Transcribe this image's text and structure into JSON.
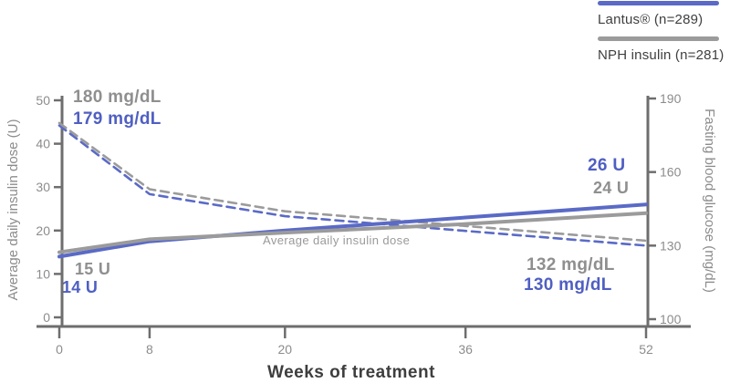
{
  "colors": {
    "brand_blue": "#5a6ac6",
    "blue_text": "#4f5fc2",
    "comparator_gray": "#9b9b9b",
    "axis_gray": "#6e6e6e",
    "tick_text_gray": "#8c8c8c",
    "legend_text": "#3f3f3f"
  },
  "legend": {
    "items": [
      {
        "label": "Lantus® (n=289)",
        "color": "#5a6ac6",
        "style": "solid"
      },
      {
        "label": "NPH insulin (n=281)",
        "color": "#9b9b9b",
        "style": "solid"
      }
    ]
  },
  "annotations": {
    "nph_fbg_start": {
      "text": "180 mg/dL"
    },
    "lantus_fbg_start": {
      "text": "179 mg/dL"
    },
    "nph_dose_start": {
      "text": "15 U"
    },
    "lantus_dose_start": {
      "text": "14 U"
    },
    "lantus_dose_end": {
      "text": "26 U"
    },
    "nph_dose_end": {
      "text": "24 U"
    },
    "nph_fbg_end": {
      "text": "132 mg/dL"
    },
    "lantus_fbg_end": {
      "text": "130 mg/dL"
    },
    "dose_note": {
      "text": "Average daily insulin dose"
    }
  },
  "chart_data": {
    "type": "line",
    "xlabel": "Weeks of treatment",
    "x_ticks": [
      0,
      8,
      20,
      36,
      52
    ],
    "x_range": [
      0,
      52
    ],
    "axes": {
      "left": {
        "title": "Average daily insulin dose (U)",
        "ticks": [
          0,
          10,
          20,
          30,
          40,
          50
        ],
        "range": [
          0,
          50
        ]
      },
      "right": {
        "title": "Fasting blood glucose (mg/dL)",
        "ticks": [
          100,
          130,
          160,
          190
        ],
        "range": [
          100,
          190
        ]
      }
    },
    "grid": false,
    "legend_position": "top-right",
    "series": [
      {
        "name": "Lantus FBG (mg/dL)",
        "axis": "right",
        "line": "dashed",
        "color": "#5a6ac6",
        "x": [
          0,
          8,
          20,
          36,
          52
        ],
        "values": [
          179,
          151,
          142,
          136,
          130
        ],
        "start_label": "179 mg/dL",
        "end_label": "130 mg/dL"
      },
      {
        "name": "NPH FBG (mg/dL)",
        "axis": "right",
        "line": "dashed",
        "color": "#9b9b9b",
        "x": [
          0,
          8,
          20,
          36,
          52
        ],
        "values": [
          180,
          153,
          144,
          138,
          132
        ],
        "start_label": "180 mg/dL",
        "end_label": "132 mg/dL"
      },
      {
        "name": "Lantus insulin dose (U)",
        "axis": "left",
        "line": "solid",
        "color": "#5a6ac6",
        "x": [
          0,
          8,
          20,
          36,
          52
        ],
        "values": [
          14,
          17.5,
          20,
          23,
          26
        ],
        "start_label": "14 U",
        "end_label": "26 U"
      },
      {
        "name": "NPH insulin dose (U)",
        "axis": "left",
        "line": "solid",
        "color": "#9b9b9b",
        "x": [
          0,
          8,
          20,
          36,
          52
        ],
        "values": [
          15,
          18,
          19.5,
          21.5,
          24
        ],
        "start_label": "15 U",
        "end_label": "24 U"
      }
    ]
  }
}
